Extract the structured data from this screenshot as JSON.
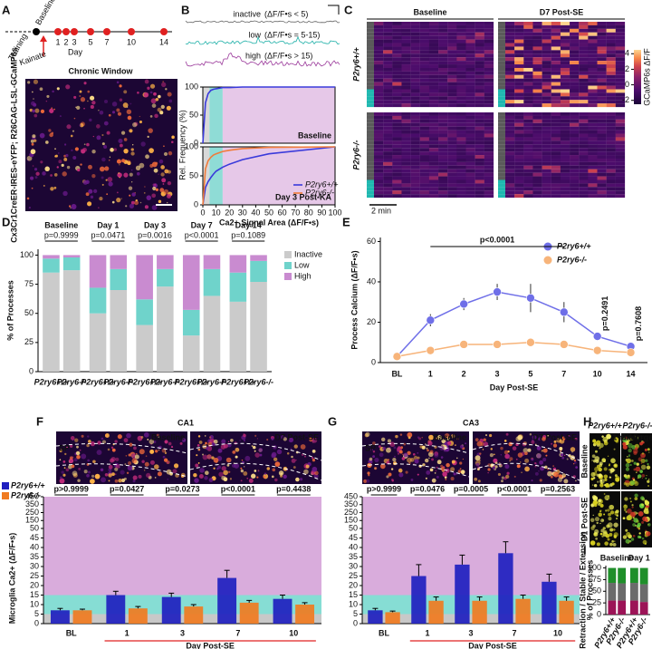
{
  "figure": {
    "panel_letters": [
      "A",
      "B",
      "C",
      "D",
      "E",
      "F",
      "G",
      "H",
      "I"
    ],
    "a": {
      "training": "Training",
      "baseline": "Baseline",
      "kainate": "Kainate",
      "day": "Day",
      "days": [
        1,
        2,
        3,
        5,
        7,
        10,
        14
      ],
      "image_title": "Chronic Window",
      "ylabel": "Cx3Cr1CreER-IRES-eYFP; R26CAG-LSL-GCaMP6s"
    },
    "b": {
      "traces": [
        {
          "name": "inactive",
          "range": "(ΔF/F•s < 5)",
          "color": "#666666"
        },
        {
          "name": "low",
          "range": "(ΔF/F•s = 5-15)",
          "color": "#1fb0a8"
        },
        {
          "name": "high",
          "range": "(ΔF/F•s > 15)",
          "color": "#9b3a9b"
        }
      ],
      "ylabel": "Rel. Frequency (%)"
    },
    "c": {
      "columns": [
        "Baseline",
        "D7 Post-SE"
      ],
      "rows": [
        "P2ry6+/+",
        "P2ry6-/-"
      ],
      "colorbar_label": "GCaMP6s ΔF/F",
      "colorbar_ticks": [
        4,
        2,
        0,
        -2
      ],
      "colorbar_lim": [
        -2.5,
        4.5
      ],
      "scale": "2 min"
    },
    "f": {
      "title": "CA1",
      "images": [
        "Baseline",
        "D7 Post-SE"
      ],
      "region": "SP"
    },
    "g": {
      "title": "CA3",
      "images": [
        "Baseline",
        "D7 Post-SE"
      ],
      "region": "SP"
    },
    "h": {
      "columns": [
        "P2ry6+/+",
        "P2ry6-/-"
      ],
      "legend": [
        "1 min",
        "5 min",
        "Merge"
      ],
      "rows": [
        "Baseline",
        "D1 Post-SE"
      ]
    }
  },
  "chart_data": [
    {
      "type": "line",
      "annotation": "Baseline",
      "annotation_color": "#222222",
      "x": [
        0,
        2,
        4,
        6,
        8,
        10,
        15,
        20,
        30,
        50,
        100
      ],
      "series": [
        {
          "color": "#3a3adb",
          "values": [
            0,
            72,
            88,
            94,
            96,
            97,
            99,
            99,
            100,
            100,
            100
          ]
        }
      ],
      "xlim": [
        0,
        100
      ],
      "ylim": [
        0,
        100
      ],
      "yticks": [
        0,
        50,
        100
      ],
      "xbands": [
        {
          "from": 0,
          "to": 5,
          "color": "#d8d8d8"
        },
        {
          "from": 5,
          "to": 15,
          "color": "#8fdcd6"
        },
        {
          "from": 15,
          "to": 100,
          "color": "#e6c8e8"
        }
      ]
    },
    {
      "type": "line",
      "annotation": "Day 3 Post-KA",
      "annotation_color": "#e02020",
      "xlabel": "Ca2+ Signal Area (ΔF/F•s)",
      "x": [
        0,
        2,
        4,
        6,
        8,
        10,
        15,
        20,
        30,
        50,
        100
      ],
      "series": [
        {
          "name": "P2ry6+/+",
          "color": "#3a3adb",
          "values": [
            0,
            30,
            40,
            47,
            53,
            58,
            65,
            70,
            78,
            88,
            100
          ]
        },
        {
          "name": "P2ry6-/-",
          "color": "#f07b3a",
          "values": [
            0,
            62,
            76,
            82,
            86,
            88,
            92,
            94,
            97,
            99,
            100
          ]
        }
      ],
      "xlim": [
        0,
        100
      ],
      "xticks": [
        0,
        10,
        20,
        30,
        40,
        50,
        60,
        70,
        80,
        90,
        100
      ],
      "ylim": [
        0,
        100
      ],
      "yticks": [
        0,
        50,
        100
      ],
      "xbands": [
        {
          "from": 0,
          "to": 5,
          "color": "#d8d8d8"
        },
        {
          "from": 5,
          "to": 15,
          "color": "#8fdcd6"
        },
        {
          "from": 15,
          "to": 100,
          "color": "#e6c8e8"
        }
      ],
      "legend": "lower right"
    },
    {
      "type": "stacked-bar",
      "ylabel": "% of Processes",
      "groups": [
        {
          "name": "Baseline",
          "p": "p=0.9999",
          "color": "#111111"
        },
        {
          "name": "Day 1",
          "p": "p=0.0471",
          "color": "#e02020"
        },
        {
          "name": "Day 3",
          "p": "p=0.0016",
          "color": "#e02020"
        },
        {
          "name": "Day 7",
          "p": "p<0.0001",
          "color": "#e02020"
        },
        {
          "name": "Day 14",
          "p": "p=0.1089",
          "color": "#e02020"
        }
      ],
      "categories": [
        "P2ry6+/+",
        "P2ry6-/-",
        "P2ry6+/+",
        "P2ry6-/-",
        "P2ry6+/+",
        "P2ry6-/-",
        "P2ry6+/+",
        "P2ry6-/-",
        "P2ry6+/+",
        "P2ry6-/-"
      ],
      "series": [
        {
          "name": "Inactive",
          "color": "#cbcbcb",
          "values": [
            85,
            87,
            50,
            70,
            40,
            73,
            31,
            65,
            60,
            77
          ]
        },
        {
          "name": "Low",
          "color": "#6fd3cb",
          "values": [
            12,
            11,
            22,
            18,
            22,
            15,
            22,
            23,
            25,
            18
          ]
        },
        {
          "name": "High",
          "color": "#c98bd0",
          "values": [
            3,
            2,
            28,
            12,
            38,
            12,
            47,
            12,
            15,
            5
          ]
        }
      ],
      "ylim": [
        0,
        105
      ],
      "yticks": [
        0,
        25,
        50,
        75,
        100
      ],
      "legend": "right"
    },
    {
      "type": "line",
      "markers": true,
      "ylabel": "Process Calcium (ΔF/F•s)",
      "xlabel": "Day Post-SE",
      "xlabel_color": "#e02020",
      "categories": [
        "BL",
        "1",
        "2",
        "3",
        "5",
        "7",
        "10",
        "14"
      ],
      "category_colors": [
        "#111111",
        "#e02020",
        "#e02020",
        "#e02020",
        "#e02020",
        "#e02020",
        "#e02020",
        "#e02020"
      ],
      "series": [
        {
          "name": "P2ry6+/+",
          "color": "#6f6fe8",
          "values": [
            3,
            21,
            29,
            35,
            32,
            25,
            13,
            8
          ],
          "errors": [
            0.5,
            3,
            3,
            4,
            7,
            5,
            2,
            1
          ]
        },
        {
          "name": "P2ry6-/-",
          "color": "#f7b47a",
          "values": [
            3,
            6,
            9,
            9,
            10,
            9,
            6,
            5
          ],
          "errors": [
            0.4,
            1,
            1.5,
            1,
            1,
            1,
            1,
            0.5
          ]
        }
      ],
      "ylim": [
        0,
        62
      ],
      "yticks": [
        0,
        20,
        40,
        60
      ],
      "p_values": [
        "p<0.0001",
        "p=0.2491",
        "p=0.7608"
      ],
      "legend": "upper right"
    },
    {
      "type": "bar",
      "ylabel": "Microglia Ca2+ (ΔF/F•s)",
      "xlabel": "Day Post-SE",
      "xlabel_color": "#e02020",
      "categories": [
        "BL",
        "1",
        "3",
        "7",
        "10"
      ],
      "category_colors": [
        "#111111",
        "#e02020",
        "#e02020",
        "#e02020",
        "#e02020"
      ],
      "series": [
        {
          "name": "P2ry6+/+",
          "color": "#1f1fbf",
          "values": [
            7,
            15,
            14,
            24,
            13
          ],
          "errors": [
            1,
            2,
            2,
            4,
            2
          ]
        },
        {
          "name": "P2ry6-/-",
          "color": "#f07b21",
          "values": [
            7,
            8,
            9,
            11,
            10
          ],
          "errors": [
            0.6,
            1,
            1,
            1.2,
            1
          ]
        }
      ],
      "ylim": [
        0,
        450
      ],
      "yscale": "broken",
      "ybreak": 50,
      "yticks": [
        0,
        5,
        10,
        15,
        20,
        25,
        30,
        35,
        40,
        45,
        50,
        150,
        250,
        350,
        450
      ],
      "bands": [
        {
          "from": 0,
          "to": 5,
          "color": "#c8c8c8"
        },
        {
          "from": 5,
          "to": 15,
          "color": "#86ddd4"
        },
        {
          "from": 15,
          "to": 450,
          "color": "#d9acdc"
        }
      ],
      "p_values": [
        "p>0.9999",
        "p=0.0427",
        "p=0.0273",
        "p<0.0001",
        "p=0.4438"
      ],
      "legend": "upper left"
    },
    {
      "type": "bar",
      "xlabel": "Day Post-SE",
      "xlabel_color": "#e02020",
      "categories": [
        "BL",
        "1",
        "3",
        "7",
        "10"
      ],
      "category_colors": [
        "#111111",
        "#e02020",
        "#e02020",
        "#e02020",
        "#e02020"
      ],
      "series": [
        {
          "color": "#1f1fbf",
          "values": [
            7,
            25,
            31,
            37,
            22
          ],
          "errors": [
            1,
            6,
            5,
            6,
            4
          ]
        },
        {
          "color": "#f07b21",
          "values": [
            6,
            12,
            12,
            13,
            12
          ],
          "errors": [
            0.6,
            2,
            2,
            2,
            2
          ]
        }
      ],
      "ylim": [
        0,
        450
      ],
      "yscale": "broken",
      "ybreak": 50,
      "yticks": [
        0,
        5,
        10,
        15,
        20,
        25,
        30,
        35,
        40,
        45,
        50,
        150,
        250,
        350,
        450
      ],
      "bands": [
        {
          "from": 0,
          "to": 5,
          "color": "#c8c8c8"
        },
        {
          "from": 5,
          "to": 15,
          "color": "#86ddd4"
        },
        {
          "from": 15,
          "to": 450,
          "color": "#d9acdc"
        }
      ],
      "p_values": [
        "p>0.9999",
        "p=0.0476",
        "p=0.0005",
        "p<0.0001",
        "p=0.2563"
      ]
    },
    {
      "type": "stacked-bar",
      "ylabel": "% of Processes",
      "side_label": "Retraction / Stable / Extension",
      "groups": [
        {
          "name": "Baseline",
          "color": "#111111"
        },
        {
          "name": "Day 1",
          "color": "#e02020"
        }
      ],
      "categories": [
        "P2ry6+/+",
        "P2ry6-/-",
        "P2ry6+/+",
        "P2ry6-/-"
      ],
      "series": [
        {
          "color": "#9c1457",
          "values": [
            30,
            30,
            30,
            27
          ]
        },
        {
          "color": "#6b6b6b",
          "values": [
            38,
            37,
            38,
            38
          ]
        },
        {
          "color": "#1f8f2a",
          "values": [
            32,
            33,
            32,
            35
          ]
        }
      ],
      "ylim": [
        0,
        105
      ],
      "yticks": [
        0,
        25,
        50,
        75,
        100
      ]
    }
  ]
}
